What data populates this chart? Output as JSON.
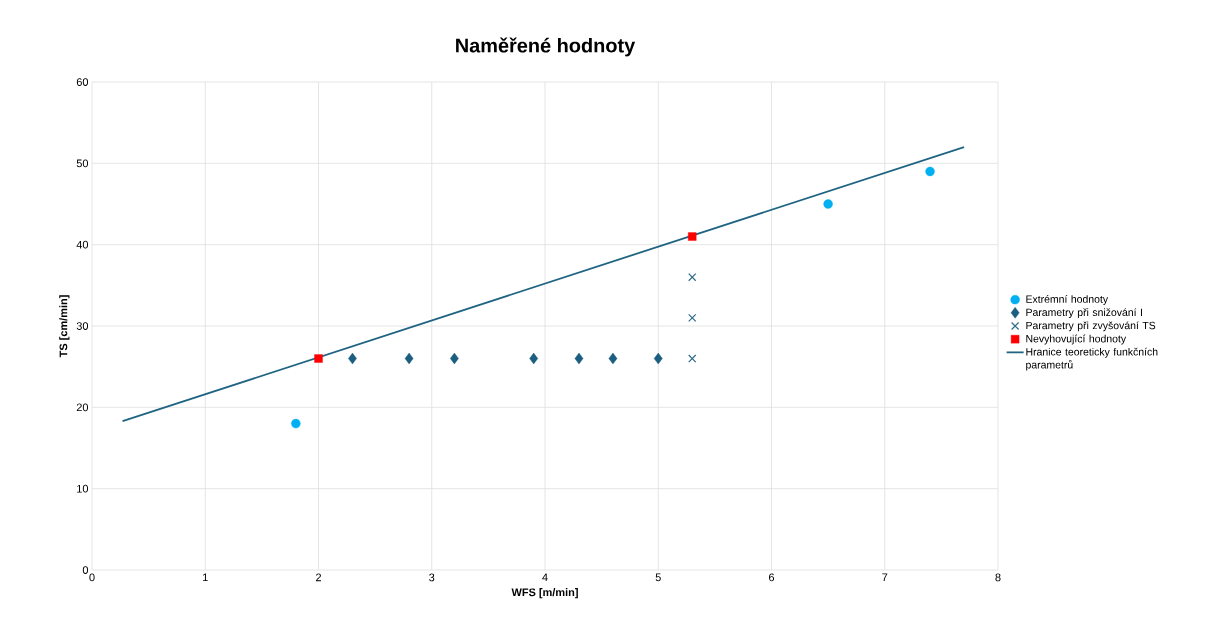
{
  "chart_data": {
    "type": "scatter",
    "title": "Naměřené hodnoty",
    "xlabel": "WFS [m/min]",
    "ylabel": "TS [cm/min]",
    "xlim": [
      0,
      8
    ],
    "ylim": [
      0,
      60
    ],
    "xticks": [
      0,
      1,
      2,
      3,
      4,
      5,
      6,
      7,
      8
    ],
    "yticks": [
      0,
      10,
      20,
      30,
      40,
      50,
      60
    ],
    "grid": true,
    "legend": "right",
    "series": [
      {
        "name": "Extrémní hodnoty",
        "color": "#00b0f0",
        "marker": "circle",
        "x": [
          1.8,
          6.5,
          7.4
        ],
        "values": [
          18,
          45,
          49
        ]
      },
      {
        "name": "Parametry při snižování I",
        "color": "#1b5e80",
        "marker": "diamond",
        "x": [
          2.3,
          2.8,
          3.2,
          3.9,
          4.3,
          4.6,
          5.0
        ],
        "values": [
          26,
          26,
          26,
          26,
          26,
          26,
          26
        ]
      },
      {
        "name": "Parametry při zvyšování TS",
        "color": "#2e6b8a",
        "marker": "cross",
        "x": [
          5.3,
          5.3,
          5.3
        ],
        "values": [
          26,
          31,
          36
        ]
      },
      {
        "name": "Nevyhovující hodnoty",
        "color": "#ff0000",
        "marker": "square",
        "x": [
          2.0,
          5.3
        ],
        "values": [
          26,
          41
        ]
      },
      {
        "name": "Hranice teoreticky funkčních parametrů",
        "type": "line",
        "color": "#1f6482",
        "marker": "none",
        "x": [
          0.27,
          7.7
        ],
        "values": [
          18.3,
          52
        ]
      }
    ]
  }
}
